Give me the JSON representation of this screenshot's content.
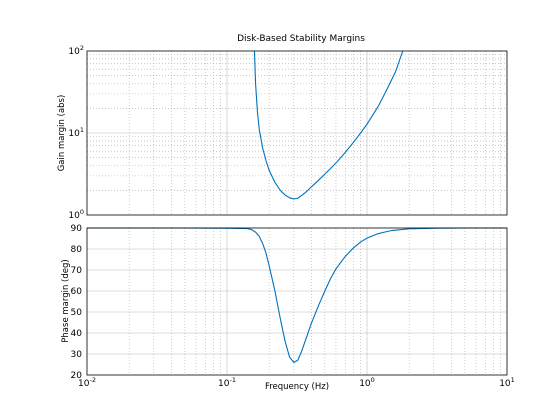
{
  "chart_data": [
    {
      "type": "line",
      "title": "Disk-Based Stability Margins",
      "xlabel": "",
      "ylabel": "Gain margin (abs)",
      "xscale": "log",
      "yscale": "log",
      "xlim": [
        0.01,
        10
      ],
      "ylim": [
        1,
        100
      ],
      "grid": true,
      "x_ticks": [
        {
          "base": "10",
          "exp": "-2"
        },
        {
          "base": "10",
          "exp": "-1"
        },
        {
          "base": "10",
          "exp": "0"
        },
        {
          "base": "10",
          "exp": "1"
        }
      ],
      "y_ticks": [
        {
          "base": "10",
          "exp": "0"
        },
        {
          "base": "10",
          "exp": "1"
        },
        {
          "base": "10",
          "exp": "2"
        }
      ],
      "series": [
        {
          "color": "#0072bd",
          "x": [
            0.157,
            0.16,
            0.165,
            0.17,
            0.18,
            0.19,
            0.2,
            0.22,
            0.24,
            0.26,
            0.28,
            0.3,
            0.32,
            0.34,
            0.37,
            0.4,
            0.45,
            0.5,
            0.55,
            0.6,
            0.7,
            0.8,
            0.9,
            1.0,
            1.2,
            1.4,
            1.6,
            1.8
          ],
          "y": [
            100,
            40,
            18,
            11,
            6.5,
            4.6,
            3.5,
            2.5,
            2.0,
            1.75,
            1.62,
            1.57,
            1.6,
            1.72,
            1.93,
            2.2,
            2.65,
            3.15,
            3.7,
            4.3,
            5.8,
            7.7,
            10.0,
            12.8,
            21.0,
            35.0,
            56.0,
            100
          ]
        }
      ]
    },
    {
      "type": "line",
      "title": "",
      "xlabel": "Frequency (Hz)",
      "ylabel": "Phase margin (deg)",
      "xscale": "log",
      "yscale": "linear",
      "xlim": [
        0.01,
        10
      ],
      "ylim": [
        20,
        90
      ],
      "grid": true,
      "x_ticks": [
        {
          "base": "10",
          "exp": "-2"
        },
        {
          "base": "10",
          "exp": "-1"
        },
        {
          "base": "10",
          "exp": "0"
        },
        {
          "base": "10",
          "exp": "1"
        }
      ],
      "y_ticks": [
        "20",
        "30",
        "40",
        "50",
        "60",
        "70",
        "80",
        "90"
      ],
      "series": [
        {
          "color": "#0072bd",
          "x": [
            0.01,
            0.05,
            0.1,
            0.14,
            0.15,
            0.16,
            0.17,
            0.18,
            0.19,
            0.2,
            0.22,
            0.24,
            0.26,
            0.28,
            0.3,
            0.32,
            0.34,
            0.37,
            0.4,
            0.45,
            0.5,
            0.55,
            0.6,
            0.7,
            0.8,
            0.9,
            1.0,
            1.2,
            1.5,
            2.0,
            3.0,
            5.0,
            10.0
          ],
          "y": [
            90,
            90,
            89.9,
            89.7,
            89.2,
            88.0,
            86.0,
            82.5,
            78.0,
            72.0,
            60.0,
            47.0,
            36.0,
            28.5,
            26.0,
            27.0,
            31.0,
            38.0,
            44.5,
            53.0,
            60.0,
            66.0,
            70.5,
            76.5,
            80.5,
            83.3,
            85.2,
            87.3,
            88.8,
            89.6,
            89.9,
            90.0,
            90.0
          ]
        }
      ]
    }
  ]
}
